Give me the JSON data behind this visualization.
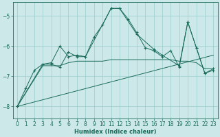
{
  "xlabel": "Humidex (Indice chaleur)",
  "background_color": "#cce8e8",
  "grid_color": "#99cccc",
  "line_color": "#1a6b5a",
  "xlim": [
    -0.5,
    23.5
  ],
  "ylim": [
    -8.4,
    -4.55
  ],
  "yticks": [
    -8,
    -7,
    -6,
    -5
  ],
  "xticks": [
    0,
    1,
    2,
    3,
    4,
    5,
    6,
    7,
    8,
    9,
    10,
    11,
    12,
    13,
    14,
    15,
    16,
    17,
    18,
    19,
    20,
    21,
    22,
    23
  ],
  "series1": [
    [
      0,
      -8.0
    ],
    [
      1,
      -7.4
    ],
    [
      2,
      -6.8
    ],
    [
      3,
      -6.6
    ],
    [
      4,
      -6.6
    ],
    [
      5,
      -6.7
    ],
    [
      6,
      -6.2
    ],
    [
      7,
      -6.35
    ],
    [
      8,
      -6.35
    ],
    [
      9,
      -5.7
    ],
    [
      10,
      -5.3
    ],
    [
      11,
      -4.75
    ],
    [
      12,
      -4.75
    ],
    [
      13,
      -5.1
    ],
    [
      14,
      -5.55
    ],
    [
      15,
      -6.05
    ],
    [
      16,
      -6.15
    ],
    [
      17,
      -6.35
    ],
    [
      18,
      -6.15
    ],
    [
      19,
      -6.7
    ],
    [
      20,
      -5.2
    ],
    [
      21,
      -6.05
    ],
    [
      22,
      -6.9
    ],
    [
      23,
      -6.8
    ]
  ],
  "series2": [
    [
      0,
      -8.0
    ],
    [
      3,
      -6.6
    ],
    [
      4,
      -6.55
    ],
    [
      5,
      -6.0
    ],
    [
      6,
      -6.35
    ],
    [
      7,
      -6.3
    ],
    [
      8,
      -6.35
    ],
    [
      11,
      -4.75
    ],
    [
      12,
      -4.75
    ],
    [
      14,
      -5.6
    ],
    [
      16,
      -6.1
    ],
    [
      17,
      -6.3
    ],
    [
      19,
      -6.65
    ],
    [
      20,
      -5.2
    ],
    [
      21,
      -6.05
    ],
    [
      22,
      -6.9
    ],
    [
      23,
      -6.75
    ]
  ],
  "series3_flat": [
    [
      0,
      -8.0
    ],
    [
      3,
      -6.65
    ],
    [
      4,
      -6.65
    ],
    [
      5,
      -6.65
    ],
    [
      6,
      -6.55
    ],
    [
      7,
      -6.5
    ],
    [
      8,
      -6.5
    ],
    [
      9,
      -6.5
    ],
    [
      10,
      -6.5
    ],
    [
      11,
      -6.45
    ],
    [
      12,
      -6.45
    ],
    [
      13,
      -6.45
    ],
    [
      14,
      -6.45
    ],
    [
      15,
      -6.45
    ],
    [
      16,
      -6.45
    ],
    [
      17,
      -6.45
    ],
    [
      18,
      -6.45
    ],
    [
      19,
      -6.5
    ],
    [
      20,
      -6.5
    ],
    [
      21,
      -6.55
    ],
    [
      22,
      -6.75
    ],
    [
      23,
      -6.75
    ]
  ],
  "trend_line": [
    [
      0,
      -8.0
    ],
    [
      23,
      -6.3
    ]
  ]
}
